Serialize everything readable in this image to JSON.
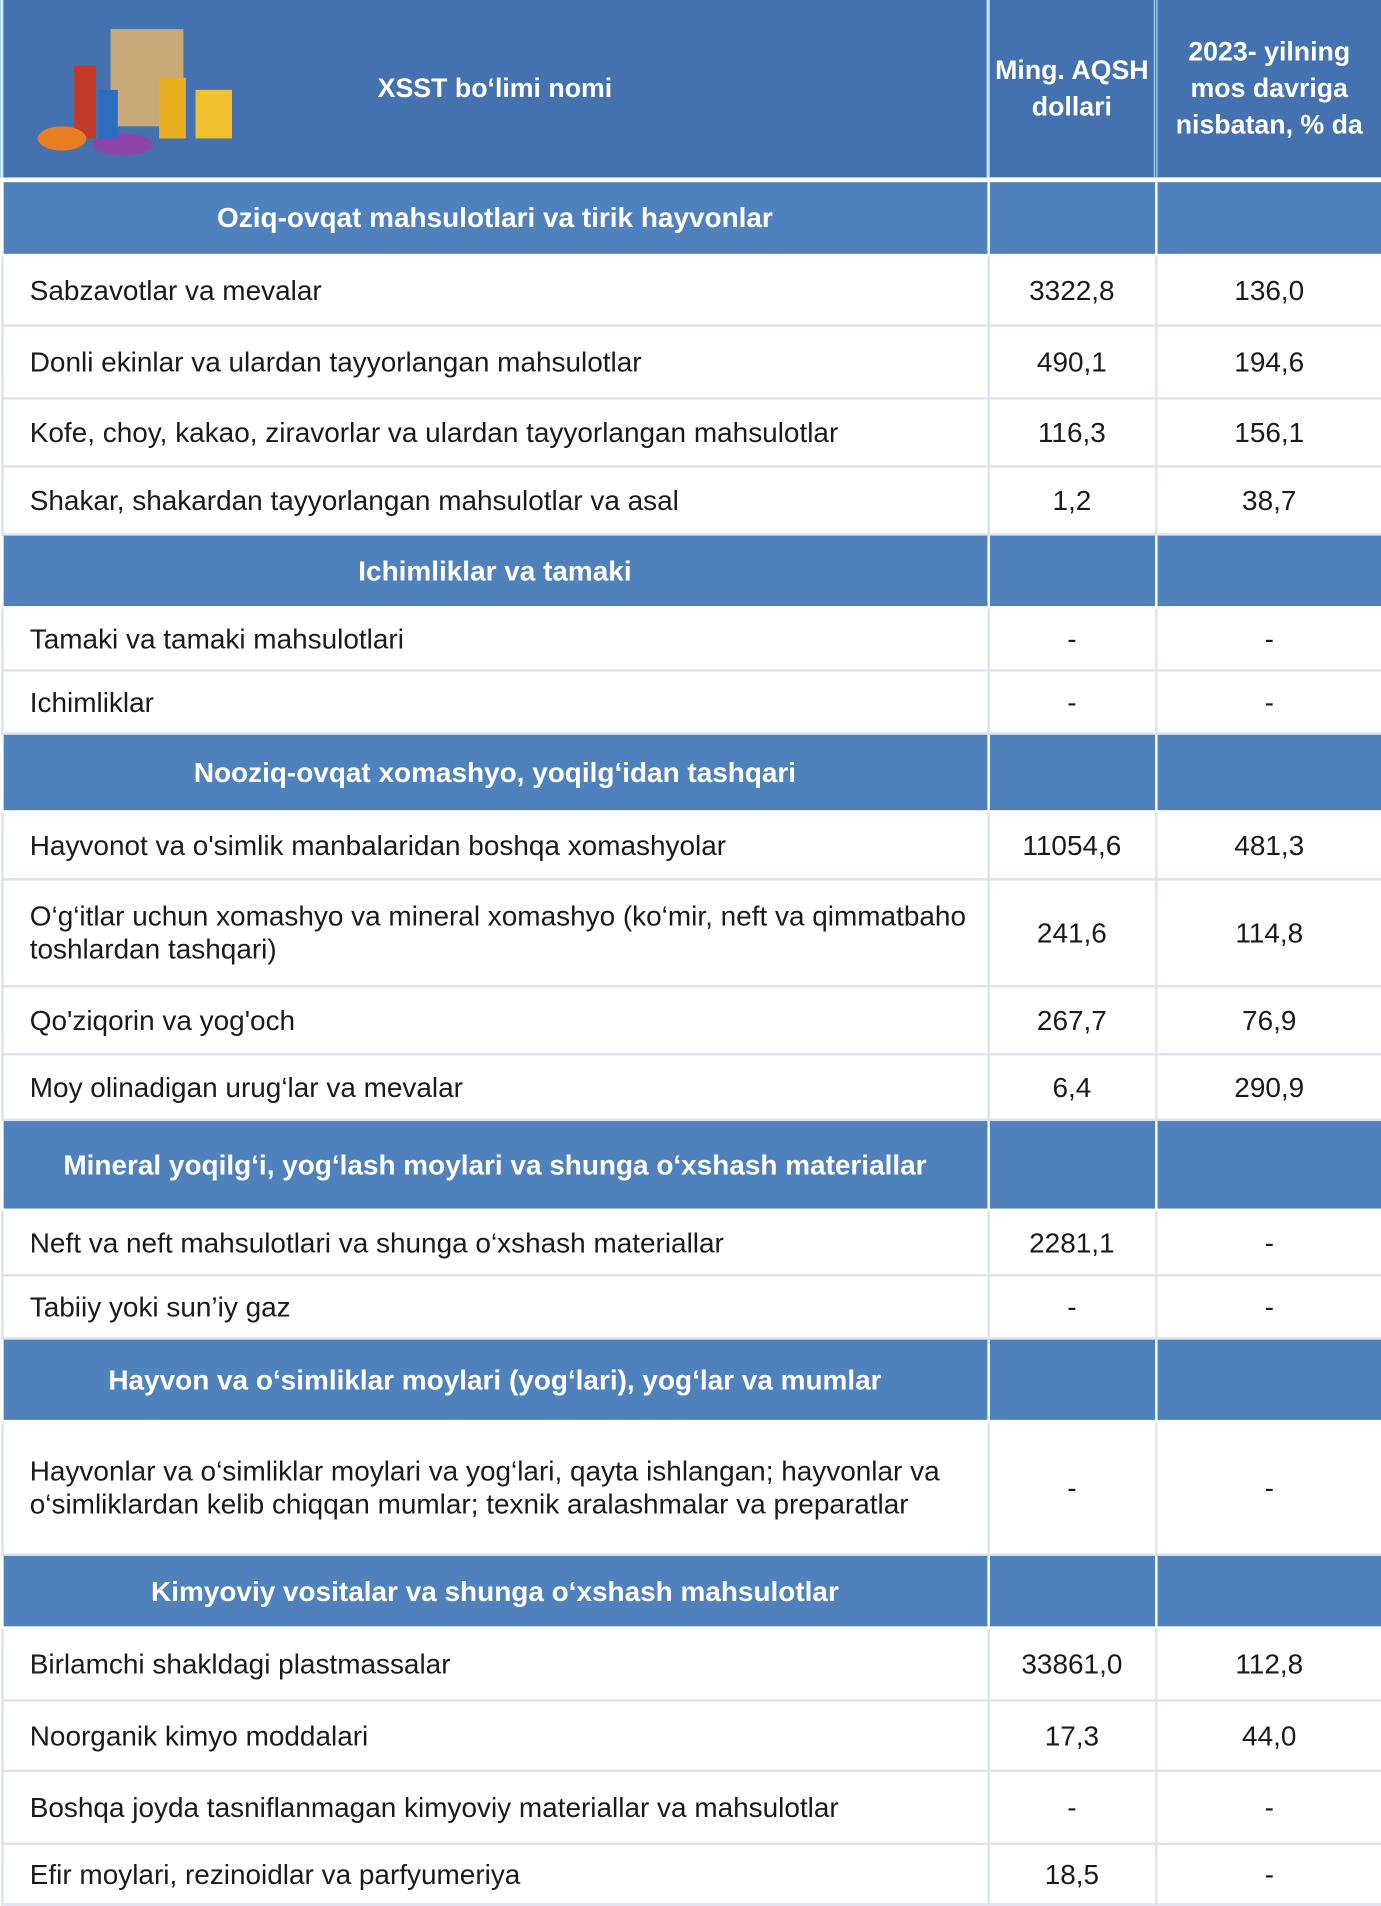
{
  "header": {
    "name": "XSST bo‘limi nomi",
    "value": "Ming. AQSH dollari",
    "pct": "2023- yilning mos davriga nisbatan, % da"
  },
  "sections": [
    {
      "title": "Oziq-ovqat mahsulotlari va tirik hayvonlar",
      "rows": [
        [
          "Sabzavotlar va mevalar",
          "3322,8",
          "136,0"
        ],
        [
          "Donli ekinlar va ulardan tayyorlangan mahsulotlar",
          "490,1",
          "194,6"
        ],
        [
          "Kofe, choy, kakao, ziravorlar va ulardan tayyorlangan mahsulotlar",
          "116,3",
          "156,1"
        ],
        [
          "Shakar, shakardan  tayyorlangan mahsulotlar va asal",
          "1,2",
          "38,7"
        ]
      ]
    },
    {
      "title": "Ichimliklar va tamaki",
      "rows": [
        [
          "Tamaki va tamaki mahsulotlari",
          "-",
          "-"
        ],
        [
          "Ichimliklar",
          "-",
          "-"
        ]
      ]
    },
    {
      "title": "Nooziq-ovqat xomashyo, yoqilg‘idan tashqari",
      "rows": [
        [
          "Hayvonot va o'simlik manbalaridan boshqa xomashyolar",
          "11054,6",
          "481,3"
        ],
        [
          "O‘g‘itlar uchun xomashyo va mineral xomashyo (ko‘mir, neft va qimmatbaho toshlardan tashqari)",
          "241,6",
          "114,8"
        ],
        [
          "Qo'ziqorin va yog'och",
          "267,7",
          "76,9"
        ],
        [
          "Moy olinadigan urug‘lar va mevalar",
          "6,4",
          "290,9"
        ]
      ]
    },
    {
      "title": "Mineral yoqilg‘i, yog‘lash moylari va shunga o‘xshash materiallar",
      "rows": [
        [
          "Neft va neft mahsulotlari va shunga o‘xshash materiallar",
          "2281,1",
          "-"
        ],
        [
          "Tabiiy yoki sun’iy gaz",
          "-",
          "-"
        ]
      ]
    },
    {
      "title": "Hayvon va o‘simliklar moylari (yog‘lari), yog‘lar va mumlar",
      "rows": [
        [
          "Hayvonlar va o‘simliklar moylari va yog‘lari, qayta ishlangan; hayvonlar va o‘simliklardan kelib chiqqan mumlar; texnik aralashmalar va preparatlar",
          "-",
          "-"
        ]
      ]
    },
    {
      "title": "Kimyoviy vositalar va shunga o‘xshash mahsulotlar",
      "rows": [
        [
          "Birlamchi shakldagi plastmassalar",
          "33861,0",
          "112,8"
        ],
        [
          "Noorganik kimyo moddalari",
          "17,3",
          "44,0"
        ],
        [
          "Boshqa joyda tasniflanmagan kimyoviy materiallar va mahsulotlar",
          "-",
          "-"
        ],
        [
          "Efir moylari, rezinoidlar va parfyumeriya",
          "18,5",
          "-"
        ]
      ]
    }
  ]
}
